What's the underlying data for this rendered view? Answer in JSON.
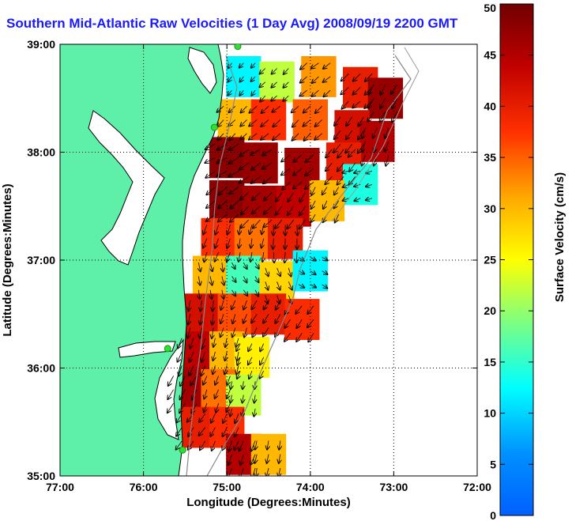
{
  "title": "Southern Mid-Atlantic Raw Velocities (1 Day Avg) 2008/09/19 2200 GMT",
  "chart_data": {
    "type": "heatmap",
    "title": "Southern Mid-Atlantic Raw Velocities (1 Day Avg) 2008/09/19 2200 GMT",
    "xlabel": "Longitude (Degrees:Minutes)",
    "ylabel": "Latitude (Degrees:Minutes)",
    "xlim": [
      -77,
      -72
    ],
    "ylim": [
      35,
      39
    ],
    "xticks": [
      -77,
      -76,
      -75,
      -74,
      -73,
      -72
    ],
    "xtick_labels": [
      "77:00",
      "76:00",
      "75:00",
      "74:00",
      "73:00",
      "72:00"
    ],
    "yticks": [
      35,
      36,
      37,
      38,
      39
    ],
    "ytick_labels": [
      "35:00",
      "36:00",
      "37:00",
      "38:00",
      "39:00"
    ],
    "grid": true,
    "colorbar": {
      "label": "Surface Velocity (cm/s)",
      "min": 0,
      "max": 50,
      "ticks": [
        0,
        5,
        10,
        15,
        20,
        25,
        30,
        35,
        40,
        45,
        50
      ],
      "colormap": "jet"
    },
    "colors": {
      "land": "#5ef0a8",
      "title": "#1a1aff",
      "coast": "#000000",
      "vector": "#000000",
      "station": "#33dd33",
      "bathymetry": "#888888"
    },
    "stations": [
      {
        "lon": -74.87,
        "lat": 38.98
      },
      {
        "lon": -75.15,
        "lat": 38.23
      },
      {
        "lon": -75.71,
        "lat": 36.18
      },
      {
        "lon": -75.53,
        "lat": 35.24
      }
    ],
    "velocity_regions": [
      {
        "lon": -74.8,
        "lat": 38.7,
        "speed": 12,
        "dir": 220
      },
      {
        "lon": -74.4,
        "lat": 38.65,
        "speed": 22,
        "dir": 225
      },
      {
        "lon": -73.9,
        "lat": 38.7,
        "speed": 32,
        "dir": 230
      },
      {
        "lon": -73.4,
        "lat": 38.6,
        "speed": 40,
        "dir": 225
      },
      {
        "lon": -73.1,
        "lat": 38.5,
        "speed": 47,
        "dir": 210
      },
      {
        "lon": -74.9,
        "lat": 38.3,
        "speed": 30,
        "dir": 225
      },
      {
        "lon": -74.5,
        "lat": 38.3,
        "speed": 38,
        "dir": 230
      },
      {
        "lon": -74.0,
        "lat": 38.3,
        "speed": 35,
        "dir": 225
      },
      {
        "lon": -73.5,
        "lat": 38.2,
        "speed": 42,
        "dir": 215
      },
      {
        "lon": -73.2,
        "lat": 38.1,
        "speed": 45,
        "dir": 200
      },
      {
        "lon": -75.0,
        "lat": 37.95,
        "speed": 48,
        "dir": 240
      },
      {
        "lon": -74.6,
        "lat": 37.9,
        "speed": 47,
        "dir": 235
      },
      {
        "lon": -74.1,
        "lat": 37.85,
        "speed": 46,
        "dir": 230
      },
      {
        "lon": -73.6,
        "lat": 37.9,
        "speed": 40,
        "dir": 220
      },
      {
        "lon": -73.4,
        "lat": 37.7,
        "speed": 14,
        "dir": 250
      },
      {
        "lon": -75.0,
        "lat": 37.55,
        "speed": 48,
        "dir": 230
      },
      {
        "lon": -74.6,
        "lat": 37.5,
        "speed": 46,
        "dir": 225
      },
      {
        "lon": -74.2,
        "lat": 37.5,
        "speed": 44,
        "dir": 215
      },
      {
        "lon": -73.8,
        "lat": 37.55,
        "speed": 30,
        "dir": 210
      },
      {
        "lon": -75.1,
        "lat": 37.2,
        "speed": 38,
        "dir": 200
      },
      {
        "lon": -74.7,
        "lat": 37.2,
        "speed": 34,
        "dir": 190
      },
      {
        "lon": -74.3,
        "lat": 37.2,
        "speed": 40,
        "dir": 180
      },
      {
        "lon": -75.2,
        "lat": 36.85,
        "speed": 30,
        "dir": 170
      },
      {
        "lon": -74.8,
        "lat": 36.85,
        "speed": 16,
        "dir": 150
      },
      {
        "lon": -74.4,
        "lat": 36.8,
        "speed": 28,
        "dir": 160
      },
      {
        "lon": -74.0,
        "lat": 36.9,
        "speed": 12,
        "dir": 120
      },
      {
        "lon": -75.3,
        "lat": 36.5,
        "speed": 42,
        "dir": 190
      },
      {
        "lon": -74.9,
        "lat": 36.5,
        "speed": 36,
        "dir": 200
      },
      {
        "lon": -74.5,
        "lat": 36.5,
        "speed": 40,
        "dir": 210
      },
      {
        "lon": -74.1,
        "lat": 36.45,
        "speed": 38,
        "dir": 215
      },
      {
        "lon": -75.4,
        "lat": 36.15,
        "speed": 44,
        "dir": 200
      },
      {
        "lon": -75.0,
        "lat": 36.15,
        "speed": 30,
        "dir": 195
      },
      {
        "lon": -74.7,
        "lat": 36.1,
        "speed": 26,
        "dir": 205
      },
      {
        "lon": -75.5,
        "lat": 35.8,
        "speed": 46,
        "dir": 210
      },
      {
        "lon": -75.1,
        "lat": 35.8,
        "speed": 34,
        "dir": 200
      },
      {
        "lon": -74.8,
        "lat": 35.75,
        "speed": 22,
        "dir": 190
      },
      {
        "lon": -75.4,
        "lat": 35.45,
        "speed": 40,
        "dir": 215
      },
      {
        "lon": -75.0,
        "lat": 35.45,
        "speed": 38,
        "dir": 205
      },
      {
        "lon": -74.8,
        "lat": 35.2,
        "speed": 45,
        "dir": 200
      },
      {
        "lon": -74.5,
        "lat": 35.2,
        "speed": 30,
        "dir": 190
      }
    ]
  }
}
